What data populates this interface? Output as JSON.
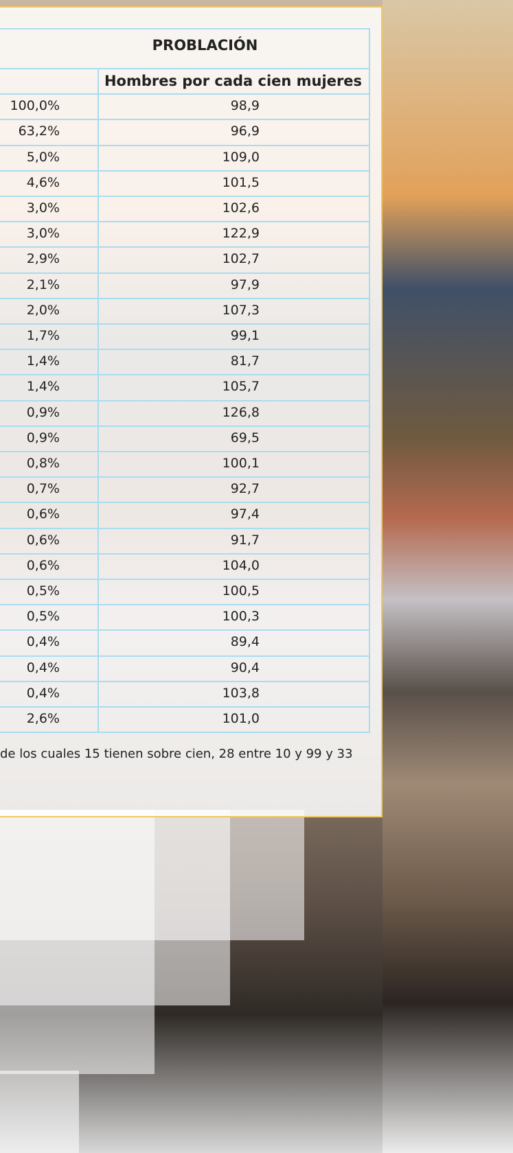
{
  "table": {
    "title": "PROBLACIÓN",
    "header": [
      "",
      "Hombres por cada cien mujeres"
    ],
    "rows": [
      [
        "100,0%",
        "98,9"
      ],
      [
        "63,2%",
        "96,9"
      ],
      [
        "5,0%",
        "109,0"
      ],
      [
        "4,6%",
        "101,5"
      ],
      [
        "3,0%",
        "102,6"
      ],
      [
        "3,0%",
        "122,9"
      ],
      [
        "2,9%",
        "102,7"
      ],
      [
        "2,1%",
        "97,9"
      ],
      [
        "2,0%",
        "107,3"
      ],
      [
        "1,7%",
        "99,1"
      ],
      [
        "1,4%",
        "81,7"
      ],
      [
        "1,4%",
        "105,7"
      ],
      [
        "0,9%",
        "126,8"
      ],
      [
        "0,9%",
        "69,5"
      ],
      [
        "0,8%",
        "100,1"
      ],
      [
        "0,7%",
        "92,7"
      ],
      [
        "0,6%",
        "97,4"
      ],
      [
        "0,6%",
        "91,7"
      ],
      [
        "0,6%",
        "104,0"
      ],
      [
        "0,5%",
        "100,5"
      ],
      [
        "0,5%",
        "100,3"
      ],
      [
        "0,4%",
        "89,4"
      ],
      [
        "0,4%",
        "90,4"
      ],
      [
        "0,4%",
        "103,8"
      ],
      [
        "2,6%",
        "101,0"
      ]
    ]
  },
  "note": "de los cuales 15 tienen sobre cien, 28 entre 10 y 99 y 33"
}
